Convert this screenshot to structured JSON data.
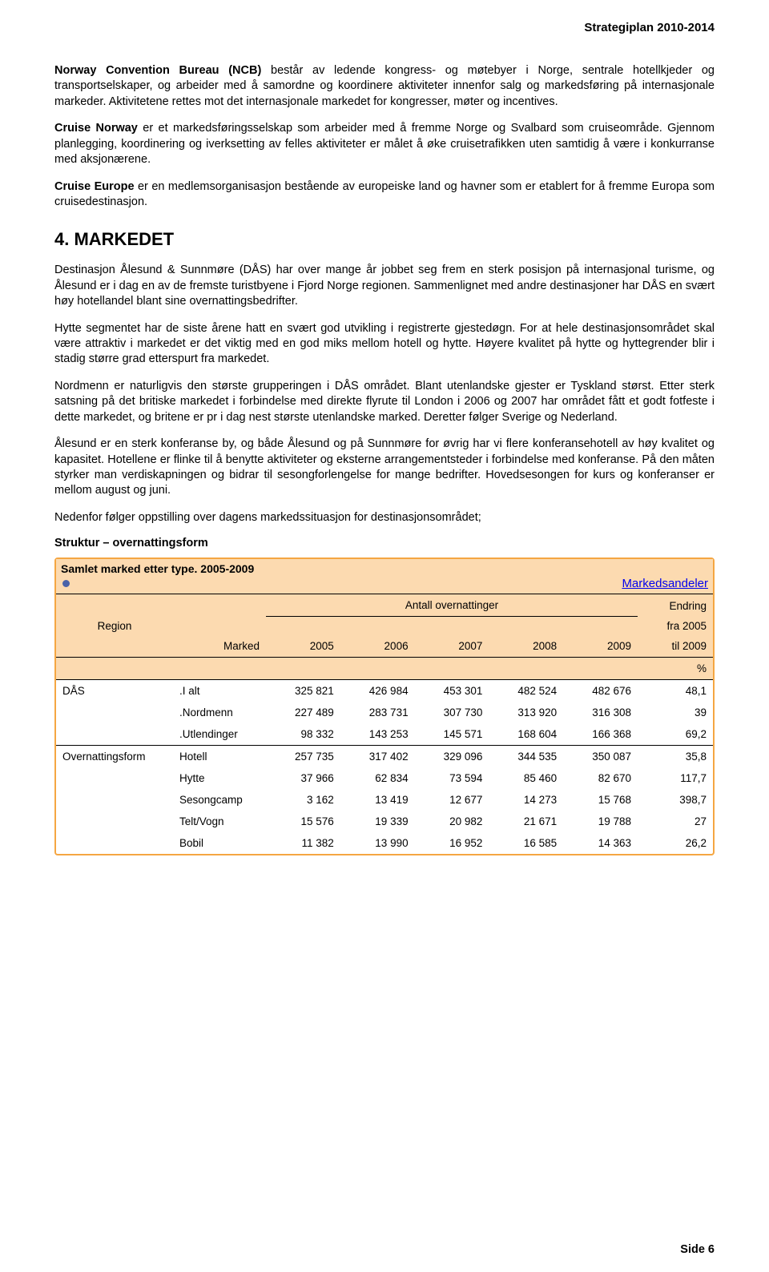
{
  "header": {
    "title": "Strategiplan 2010-2014"
  },
  "paragraphs": {
    "p1": "Norway Convention Bureau (NCB) består av ledende kongress- og møtebyer i Norge, sentrale hotellkjeder og transportselskaper, og arbeider med å samordne og koordinere aktiviteter innenfor salg og markedsføring på internasjonale markeder. Aktivitetene rettes mot det internasjonale markedet for kongresser, møter og incentives.",
    "p2": "Cruise Norway er et markedsføringsselskap som arbeider med å fremme Norge og Svalbard som cruiseområde. Gjennom planlegging, koordinering og iverksetting av felles aktiviteter er målet å øke cruisetrafikken uten samtidig å være i konkurranse med aksjonærene.",
    "p3": "Cruise Europe er en medlemsorganisasjon bestående av europeiske land og havner som er etablert for å fremme Europa som cruisedestinasjon.",
    "section": "4. MARKEDET",
    "p4": "Destinasjon Ålesund & Sunnmøre (DÅS) har over mange år jobbet seg frem en sterk posisjon på internasjonal turisme, og Ålesund er i dag en av de fremste turistbyene i Fjord Norge regionen. Sammenlignet med andre destinasjoner har DÅS en svært høy hotellandel blant sine overnattingsbedrifter.",
    "p5": "Hytte segmentet har de siste årene hatt en svært god utvikling i registrerte gjestedøgn. For at hele destinasjonsområdet skal være attraktiv i markedet er det viktig med en god miks mellom hotell og hytte. Høyere kvalitet på hytte og hyttegrender blir i stadig større grad etterspurt fra markedet.",
    "p6": "Nordmenn er naturligvis den største grupperingen i DÅS området. Blant utenlandske gjester er Tyskland størst. Etter sterk satsning på det britiske markedet i forbindelse med direkte flyrute til London i 2006 og 2007 har området fått et godt fotfeste i dette markedet, og britene er pr i dag nest største utenlandske marked. Deretter følger Sverige og Nederland.",
    "p7": "Ålesund er en sterk konferanse by, og både Ålesund og på Sunnmøre for øvrig har vi flere konferansehotell av høy kvalitet og kapasitet. Hotellene er flinke til å benytte aktiviteter og eksterne arrangementsteder i forbindelse med konferanse. På den måten styrker man verdiskapningen og bidrar til sesongforlengelse for mange bedrifter. Hovedsesongen for kurs og konferanser er mellom august og juni.",
    "p8": "Nedenfor følger oppstilling over dagens markedssituasjon for destinasjonsområdet;",
    "subhead": "Struktur – overnattingsform"
  },
  "table": {
    "title": "Samlet marked etter type. 2005-2009",
    "link": "Markedsandeler",
    "header": {
      "antall": "Antall overnattinger",
      "endring": "Endring",
      "region": "Region",
      "fra": "fra 2005",
      "marked": "Marked",
      "years": [
        "2005",
        "2006",
        "2007",
        "2008",
        "2009"
      ],
      "til": "til 2009",
      "pct": "%"
    },
    "rows": [
      {
        "group": "DÅS",
        "marked": ".I alt",
        "v": [
          "325 821",
          "426 984",
          "453 301",
          "482 524",
          "482 676"
        ],
        "e": "48,1"
      },
      {
        "group": "",
        "marked": ".Nordmenn",
        "v": [
          "227 489",
          "283 731",
          "307 730",
          "313 920",
          "316 308"
        ],
        "e": "39"
      },
      {
        "group": "",
        "marked": ".Utlendinger",
        "v": [
          "98 332",
          "143 253",
          "145 571",
          "168 604",
          "166 368"
        ],
        "e": "69,2",
        "sep": true
      },
      {
        "group": "Overnattingsform",
        "marked": "Hotell",
        "v": [
          "257 735",
          "317 402",
          "329 096",
          "344 535",
          "350 087"
        ],
        "e": "35,8"
      },
      {
        "group": "",
        "marked": "Hytte",
        "v": [
          "37 966",
          "62 834",
          "73 594",
          "85 460",
          "82 670"
        ],
        "e": "117,7"
      },
      {
        "group": "",
        "marked": "Sesongcamp",
        "v": [
          "3 162",
          "13 419",
          "12 677",
          "14 273",
          "15 768"
        ],
        "e": "398,7"
      },
      {
        "group": "",
        "marked": "Telt/Vogn",
        "v": [
          "15 576",
          "19 339",
          "20 982",
          "21 671",
          "19 788"
        ],
        "e": "27"
      },
      {
        "group": "",
        "marked": "Bobil",
        "v": [
          "11 382",
          "13 990",
          "16 952",
          "16 585",
          "14 363"
        ],
        "e": "26,2"
      }
    ],
    "colors": {
      "border": "#f5a642",
      "header_bg": "#fcdab0",
      "link": "#0000ee",
      "dot": "#4a62a8"
    }
  },
  "footer": {
    "text": "Side 6"
  }
}
